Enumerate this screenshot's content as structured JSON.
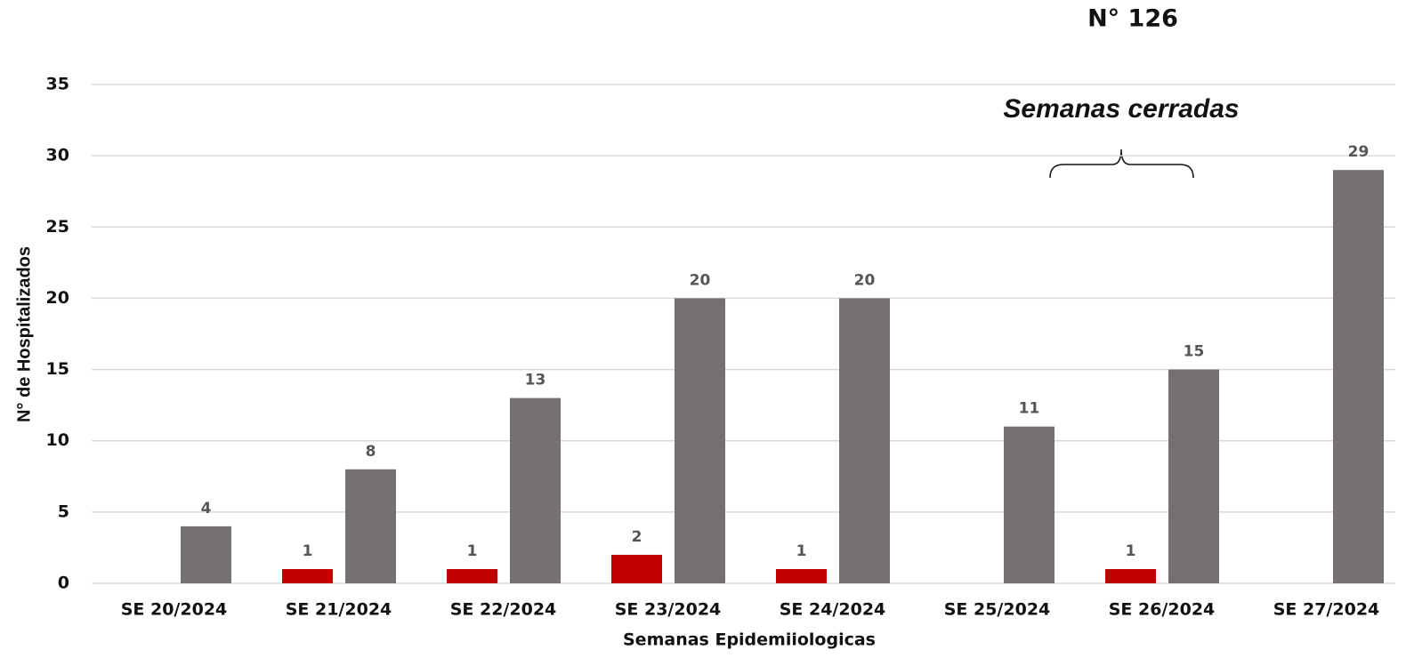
{
  "chart_data": {
    "type": "bar",
    "title": "N° 126",
    "annotation": "Semanas cerradas",
    "y_label": "N° de Hospitalizados",
    "x_label": "Semanas Epidemiiologicas",
    "categories": [
      "SE 20/2024",
      "SE 21/2024",
      "SE 22/2024",
      "SE 23/2024",
      "SE 24/2024",
      "SE 25/2024",
      "SE 26/2024",
      "SE 27/2024"
    ],
    "series": [
      {
        "color": "#c00000",
        "values": [
          null,
          1,
          1,
          2,
          1,
          null,
          1,
          null
        ]
      },
      {
        "color": "#767171",
        "values": [
          4,
          8,
          13,
          20,
          20,
          11,
          15,
          29
        ]
      }
    ],
    "ylim": [
      0,
      35
    ],
    "yticks": [
      0,
      5,
      10,
      15,
      20,
      25,
      30,
      35
    ],
    "grid": true
  }
}
